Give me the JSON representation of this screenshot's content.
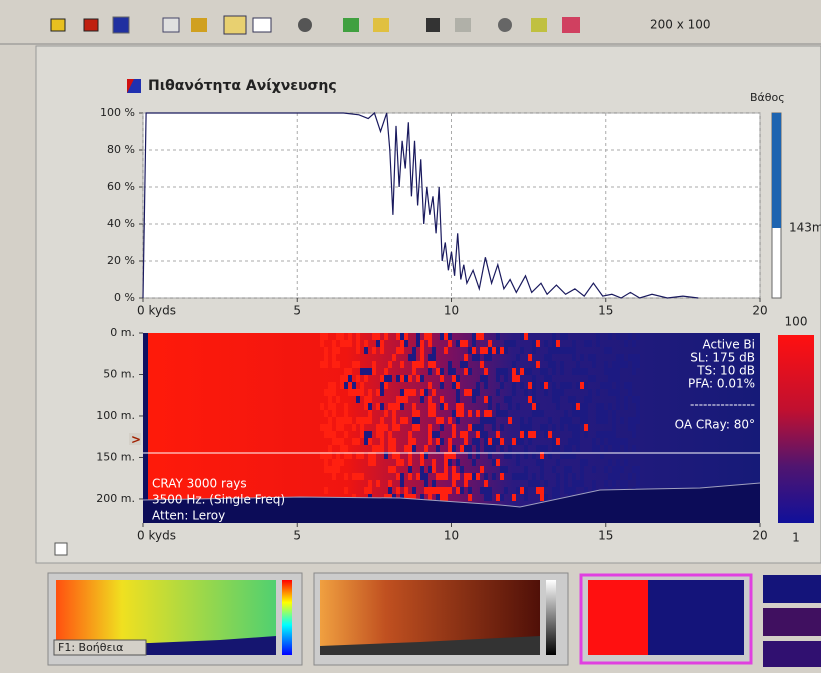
{
  "toolbar": {
    "size_label": "200 x 100"
  },
  "chart_data": [
    {
      "type": "line",
      "title": "Πιθανότητα Ανίχνευσης",
      "depth_title": "Βάθος",
      "depth_label": "143m",
      "color": "#1a1a5e",
      "grid": true,
      "xlim": [
        0,
        20
      ],
      "xticks": [
        {
          "value": 0,
          "label": "0 kyds"
        },
        5,
        10,
        15,
        20
      ],
      "ylim": [
        0,
        100
      ],
      "yticks": [
        {
          "value": 0,
          "label": "0 %"
        },
        {
          "value": 20,
          "label": "20 %"
        },
        {
          "value": 40,
          "label": "40 %"
        },
        {
          "value": 60,
          "label": "60 %"
        },
        {
          "value": 80,
          "label": "80 %"
        },
        {
          "value": 100,
          "label": "100 %"
        }
      ],
      "x": [
        0,
        0.1,
        3,
        6.5,
        7,
        7.3,
        7.5,
        7.7,
        7.9,
        8.0,
        8.1,
        8.2,
        8.3,
        8.4,
        8.5,
        8.6,
        8.7,
        8.8,
        8.9,
        9.0,
        9.1,
        9.2,
        9.3,
        9.4,
        9.5,
        9.6,
        9.7,
        9.8,
        9.9,
        10.0,
        10.1,
        10.2,
        10.3,
        10.4,
        10.5,
        10.7,
        10.9,
        11.1,
        11.3,
        11.5,
        11.7,
        11.9,
        12.1,
        12.4,
        12.6,
        12.9,
        13.1,
        13.4,
        13.7,
        14.0,
        14.3,
        14.6,
        14.9,
        15.2,
        15.5,
        15.8,
        16.1,
        16.5,
        17,
        17.5,
        18
      ],
      "values": [
        0,
        100,
        100,
        100,
        99,
        97,
        100,
        90,
        100,
        80,
        45,
        93,
        60,
        85,
        70,
        95,
        55,
        85,
        50,
        75,
        40,
        60,
        45,
        55,
        35,
        60,
        20,
        30,
        15,
        25,
        12,
        35,
        10,
        18,
        8,
        15,
        5,
        22,
        8,
        18,
        5,
        10,
        3,
        12,
        3,
        8,
        2,
        7,
        2,
        5,
        1,
        8,
        1,
        2,
        0,
        3,
        0,
        2,
        0,
        1,
        0
      ]
    },
    {
      "type": "heatmap",
      "inverted": true,
      "xlim": [
        0,
        20
      ],
      "xticks": [
        {
          "value": 0,
          "label": "0 kyds"
        },
        5,
        10,
        15,
        20
      ],
      "ylim": [
        0,
        229
      ],
      "yticks": [
        {
          "value": 0,
          "label": "0 m."
        },
        {
          "value": 50,
          "label": "50 m."
        },
        {
          "value": 100,
          "label": "100 m."
        },
        {
          "value": 150,
          "label": "150 m."
        },
        {
          "value": 200,
          "label": "200 m."
        }
      ],
      "annotations_right": [
        "Active Bi",
        "SL: 175 dB",
        "TS: 10 dB",
        "PFA: 0.01%",
        "---------------",
        "OA CRay: 80°"
      ],
      "annotations_left": [
        "CRAY 3000 rays",
        "3500 Hz. (Single Freq)",
        "Atten: Leroy"
      ],
      "colorbar_ticks": [
        100,
        1
      ]
    }
  ],
  "thumbnails": {
    "help_label": "F1: Βοήθεια"
  }
}
